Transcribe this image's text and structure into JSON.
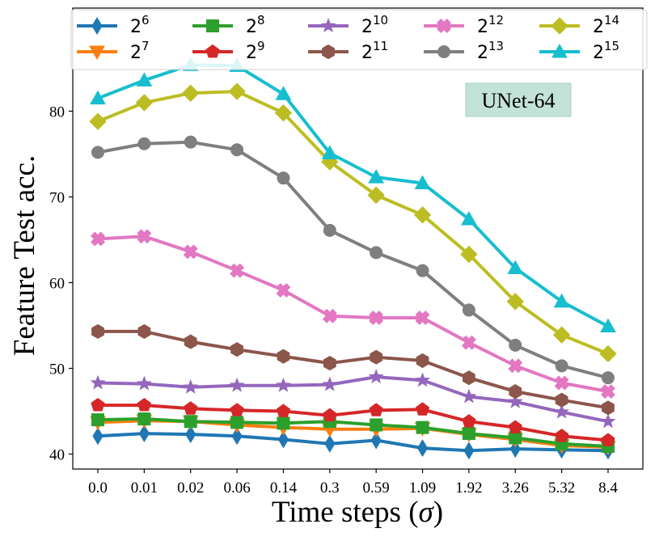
{
  "chart_data": {
    "type": "line",
    "title": "",
    "xlabel": "Time steps (",
    "xlabel_symbol": "σ",
    "xlabel_close": ")",
    "ylabel": "Feature Test acc.",
    "x": [
      "0.0",
      "0.01",
      "0.02",
      "0.06",
      "0.14",
      "0.3",
      "0.59",
      "1.09",
      "1.92",
      "3.26",
      "5.32",
      "8.4"
    ],
    "ylim": [
      38.5,
      86
    ],
    "yticks": [
      "40",
      "50",
      "60",
      "70",
      "80"
    ],
    "ytick_values": [
      40,
      50,
      60,
      70,
      80
    ],
    "grid": false,
    "legend_placement": "top",
    "annotation": "UNet-64",
    "series": [
      {
        "name": "2",
        "exp": "6",
        "color": "#1f77b4",
        "marker": "thin_diamond",
        "values": [
          42.1,
          42.4,
          42.3,
          42.1,
          41.7,
          41.2,
          41.6,
          40.7,
          40.4,
          40.6,
          40.5,
          40.4
        ]
      },
      {
        "name": "2",
        "exp": "7",
        "color": "#ff7f0e",
        "marker": "triangle_down",
        "values": [
          43.7,
          43.9,
          43.8,
          43.4,
          43.1,
          42.9,
          42.9,
          43.0,
          42.3,
          41.7,
          41.0,
          40.8
        ]
      },
      {
        "name": "2",
        "exp": "8",
        "color": "#2ca02c",
        "marker": "square",
        "values": [
          44.0,
          44.1,
          43.8,
          43.7,
          43.6,
          43.8,
          43.4,
          43.1,
          42.4,
          41.9,
          41.2,
          40.9
        ]
      },
      {
        "name": "2",
        "exp": "9",
        "color": "#d62728",
        "marker": "pentagon",
        "values": [
          45.7,
          45.7,
          45.3,
          45.1,
          45.0,
          44.5,
          45.1,
          45.2,
          43.8,
          43.1,
          42.1,
          41.6
        ]
      },
      {
        "name": "2",
        "exp": "10",
        "color": "#9467bd",
        "marker": "star",
        "values": [
          48.3,
          48.2,
          47.8,
          48.0,
          48.0,
          48.1,
          49.0,
          48.6,
          46.7,
          46.1,
          44.9,
          43.8
        ]
      },
      {
        "name": "2",
        "exp": "11",
        "color": "#8c564b",
        "marker": "hexagon",
        "values": [
          54.3,
          54.3,
          53.1,
          52.2,
          51.4,
          50.6,
          51.3,
          50.9,
          48.9,
          47.3,
          46.3,
          45.4
        ]
      },
      {
        "name": "2",
        "exp": "12",
        "color": "#e377c2",
        "marker": "plus_filled",
        "values": [
          65.1,
          65.4,
          63.6,
          61.4,
          59.1,
          56.1,
          55.9,
          55.9,
          53.0,
          50.3,
          48.3,
          47.3
        ]
      },
      {
        "name": "2",
        "exp": "13",
        "color": "#7f7f7f",
        "marker": "circle",
        "values": [
          75.2,
          76.2,
          76.4,
          75.5,
          72.2,
          66.1,
          63.5,
          61.4,
          56.8,
          52.7,
          50.3,
          48.9
        ]
      },
      {
        "name": "2",
        "exp": "14",
        "color": "#bcbd22",
        "marker": "diamond",
        "values": [
          78.8,
          81.0,
          82.1,
          82.3,
          79.8,
          74.1,
          70.2,
          67.9,
          63.3,
          57.8,
          53.9,
          51.7
        ]
      },
      {
        "name": "2",
        "exp": "15",
        "color": "#17becf",
        "marker": "triangle_up",
        "values": [
          81.5,
          83.6,
          85.4,
          85.3,
          82.0,
          75.1,
          72.3,
          71.6,
          67.4,
          61.7,
          57.8,
          54.9
        ]
      }
    ]
  }
}
